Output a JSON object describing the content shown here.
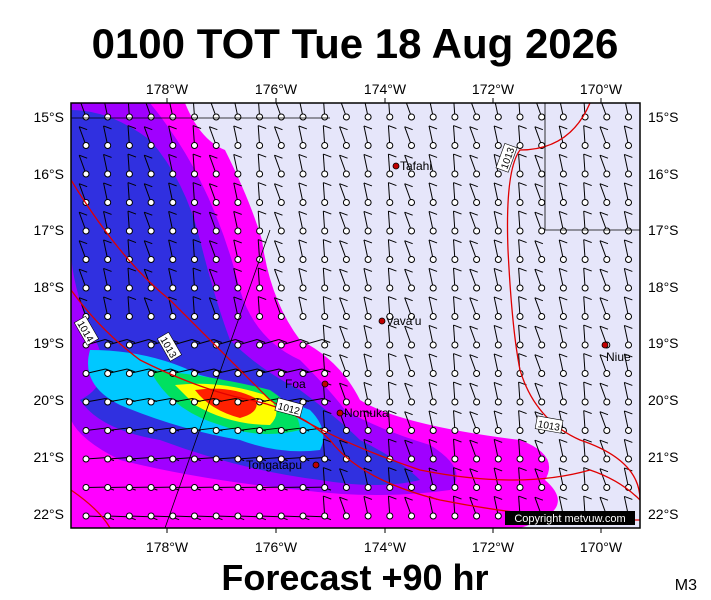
{
  "title": "0100 TOT Tue 18 Aug 2026",
  "footer": "Forecast +90 hr",
  "code": "M3",
  "copyright": "Copyright metvuw.com",
  "map": {
    "lon_labels": [
      "178°W",
      "176°W",
      "174°W",
      "172°W",
      "170°W"
    ],
    "lat_labels": [
      "15°S",
      "16°S",
      "17°S",
      "18°S",
      "19°S",
      "20°S",
      "21°S",
      "22°S"
    ],
    "places": [
      "Tafahi",
      "Vava'u",
      "Niue",
      "Foa",
      "Nomuka",
      "Tongatapu"
    ],
    "isobar_labels": [
      "1013",
      "1014",
      "1013",
      "1012",
      "1013"
    ]
  }
}
